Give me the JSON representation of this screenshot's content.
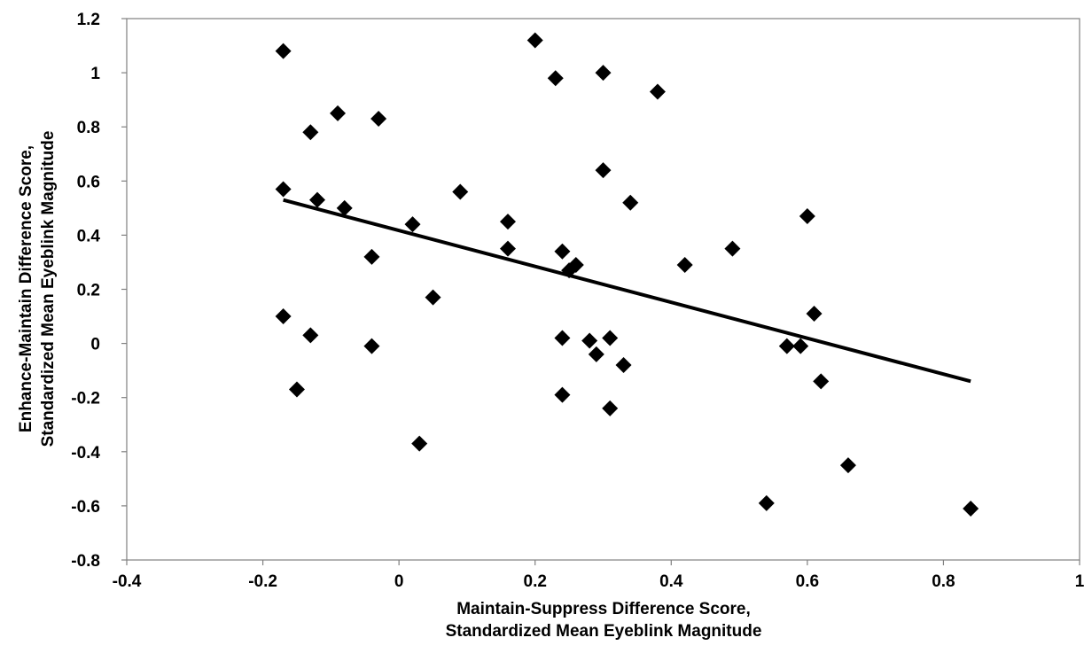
{
  "chart_data": {
    "type": "scatter",
    "title": "",
    "xlabel_lines": [
      "Maintain-Suppress Difference Score,",
      "Standardized Mean Eyeblink Magnitude"
    ],
    "ylabel_lines": [
      "Enhance-Maintain Difference Score,",
      "Standardized Mean Eyeblink Magnitude"
    ],
    "xlim": [
      -0.4,
      1
    ],
    "ylim": [
      -0.8,
      1.2
    ],
    "x_ticks": [
      "-0.4",
      "-0.2",
      "0",
      "0.2",
      "0.4",
      "0.6",
      "0.8",
      "1"
    ],
    "y_ticks": [
      "1.2",
      "1",
      "0.8",
      "0.6",
      "0.4",
      "0.2",
      "0",
      "-0.2",
      "-0.4",
      "-0.6",
      "-0.8"
    ],
    "x_tick_values": [
      -0.4,
      -0.2,
      0,
      0.2,
      0.4,
      0.6,
      0.8,
      1
    ],
    "y_tick_values": [
      1.2,
      1,
      0.8,
      0.6,
      0.4,
      0.2,
      0,
      -0.2,
      -0.4,
      -0.6,
      -0.8
    ],
    "grid": false,
    "legend": "none",
    "marker": "diamond",
    "points": [
      [
        -0.17,
        1.08
      ],
      [
        0.2,
        1.12
      ],
      [
        0.23,
        0.98
      ],
      [
        0.3,
        1.0
      ],
      [
        0.38,
        0.93
      ],
      [
        -0.13,
        0.78
      ],
      [
        -0.09,
        0.85
      ],
      [
        -0.03,
        0.83
      ],
      [
        -0.17,
        0.57
      ],
      [
        -0.12,
        0.53
      ],
      [
        -0.08,
        0.5
      ],
      [
        0.09,
        0.56
      ],
      [
        0.3,
        0.64
      ],
      [
        0.02,
        0.44
      ],
      [
        0.16,
        0.45
      ],
      [
        0.34,
        0.52
      ],
      [
        0.6,
        0.47
      ],
      [
        -0.04,
        0.32
      ],
      [
        0.16,
        0.35
      ],
      [
        0.24,
        0.34
      ],
      [
        0.25,
        0.27
      ],
      [
        0.26,
        0.29
      ],
      [
        0.42,
        0.29
      ],
      [
        0.49,
        0.35
      ],
      [
        0.05,
        0.17
      ],
      [
        -0.17,
        0.1
      ],
      [
        -0.13,
        0.03
      ],
      [
        -0.04,
        -0.01
      ],
      [
        0.24,
        0.02
      ],
      [
        0.28,
        0.01
      ],
      [
        0.31,
        0.02
      ],
      [
        0.29,
        -0.04
      ],
      [
        0.33,
        -0.08
      ],
      [
        0.57,
        -0.01
      ],
      [
        0.59,
        -0.01
      ],
      [
        0.61,
        0.11
      ],
      [
        0.62,
        -0.14
      ],
      [
        -0.15,
        -0.17
      ],
      [
        0.24,
        -0.19
      ],
      [
        0.31,
        -0.24
      ],
      [
        0.03,
        -0.37
      ],
      [
        0.66,
        -0.45
      ],
      [
        0.54,
        -0.59
      ],
      [
        0.84,
        -0.61
      ]
    ],
    "trendline": {
      "x": [
        -0.17,
        0.84
      ],
      "y": [
        0.53,
        -0.14
      ]
    },
    "colors": {
      "marker": "#000000",
      "line": "#000000",
      "axis": "#808080"
    }
  }
}
